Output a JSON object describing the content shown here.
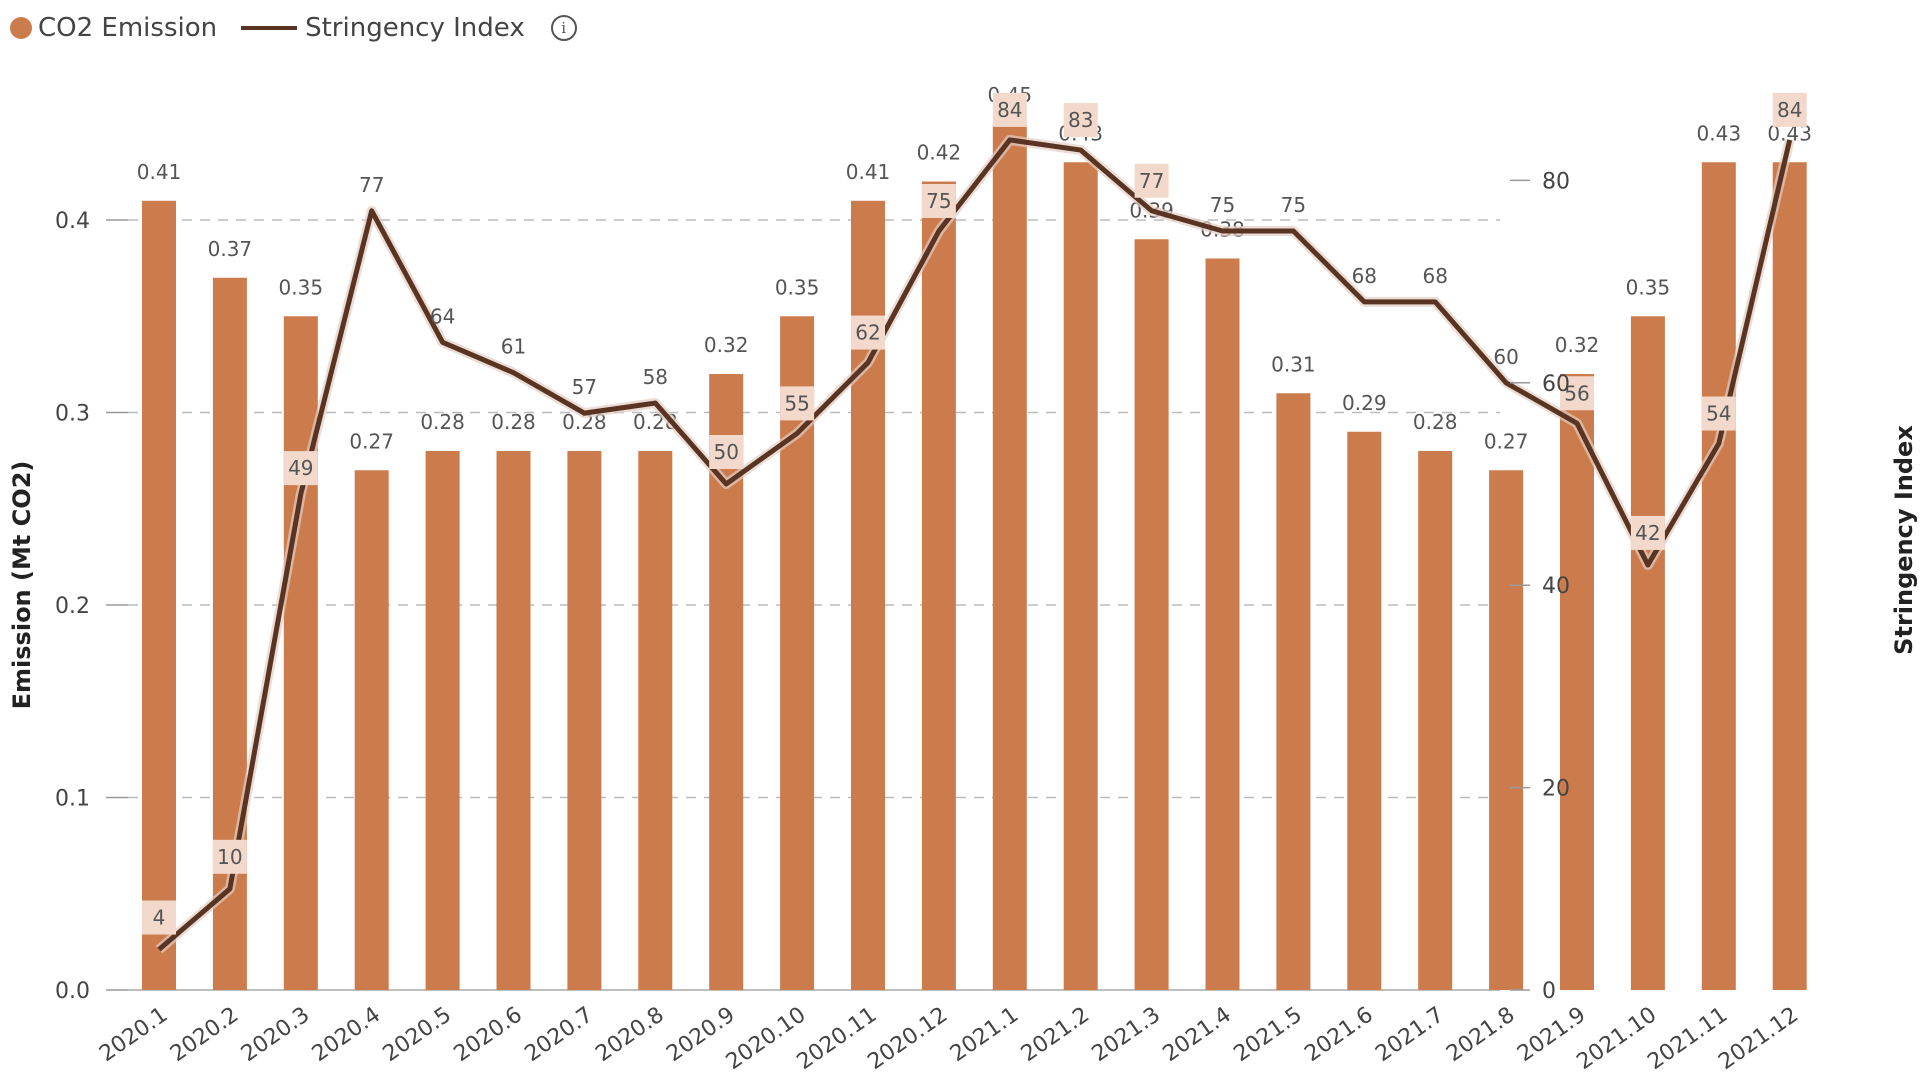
{
  "legend": {
    "emission_label": "CO2 Emission",
    "index_label": "Stringency Index",
    "info_glyph": "i"
  },
  "colors": {
    "bar": "#CC7B4C",
    "line": "#5A3422",
    "label_box": "#F2D9CC",
    "grid": "#BBBBBB"
  },
  "chart_data": {
    "type": "bar",
    "categories": [
      "2020.1",
      "2020.2",
      "2020.3",
      "2020.4",
      "2020.5",
      "2020.6",
      "2020.7",
      "2020.8",
      "2020.9",
      "2020.10",
      "2020.11",
      "2020.12",
      "2021.1",
      "2021.2",
      "2021.3",
      "2021.4",
      "2021.5",
      "2021.6",
      "2021.7",
      "2021.8",
      "2021.9",
      "2021.10",
      "2021.11",
      "2021.12"
    ],
    "series": [
      {
        "name": "CO2 Emission",
        "type": "bar",
        "axis": "left",
        "values": [
          0.41,
          0.37,
          0.35,
          0.27,
          0.28,
          0.28,
          0.28,
          0.28,
          0.32,
          0.35,
          0.41,
          0.42,
          0.45,
          0.43,
          0.39,
          0.38,
          0.31,
          0.29,
          0.28,
          0.27,
          0.32,
          0.35,
          0.43,
          0.43
        ],
        "labels": [
          "0.41",
          "0.37",
          "0.35",
          "0.27",
          "0.28",
          "0.28",
          "0.28",
          "0.28",
          "0.32",
          "0.35",
          "0.41",
          "0.42",
          "0.45",
          "0.43",
          "0.39",
          "0.38",
          "0.31",
          "0.29",
          "0.28",
          "0.27",
          "0.32",
          "0.35",
          "0.43",
          "0.43"
        ]
      },
      {
        "name": "Stringency Index",
        "type": "line",
        "axis": "right",
        "values": [
          4,
          10,
          49,
          77,
          64,
          61,
          57,
          58,
          50,
          55,
          62,
          75,
          84,
          83,
          77,
          75,
          75,
          68,
          68,
          60,
          56,
          42,
          54,
          84
        ],
        "labels": [
          "4",
          "10",
          "49",
          "77",
          "64",
          "61",
          "57",
          "58",
          "50",
          "55",
          "62",
          "75",
          "84",
          "83",
          "77",
          "75",
          "75",
          "68",
          "68",
          "60",
          "56",
          "42",
          "54",
          "84"
        ]
      }
    ],
    "ylabel": "Emission (Mt CO2)",
    "y2label": "Stringency Index",
    "ylim": [
      0,
      0.45
    ],
    "y2lim": [
      0,
      85
    ],
    "yticks": [
      "0.0",
      "0.1",
      "0.2",
      "0.3",
      "0.4"
    ],
    "yticks_values": [
      0,
      0.1,
      0.2,
      0.3,
      0.4
    ],
    "y2ticks": [
      "0",
      "20",
      "40",
      "60",
      "80"
    ],
    "y2ticks_values": [
      0,
      20,
      40,
      60,
      80
    ],
    "grid": true,
    "legend_position": "top-left"
  }
}
